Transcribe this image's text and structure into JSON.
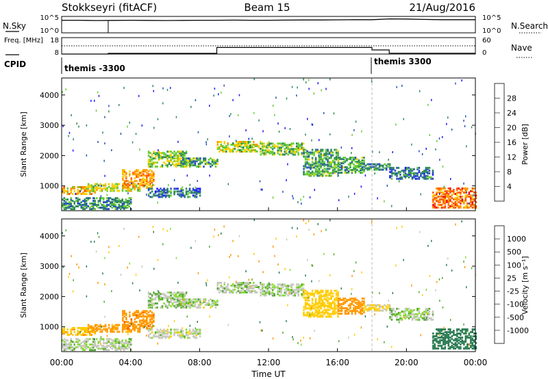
{
  "chart_data": {
    "type": "heatmap",
    "title_left": "Stokkseyri (fitACF)",
    "title_center": "Beam 15",
    "title_right": "21/Aug/2016",
    "time_axis": {
      "label": "Time UT",
      "ticks": [
        "00:00",
        "04:00",
        "08:00",
        "12:00",
        "16:00",
        "20:00",
        "00:00"
      ],
      "range_hours": [
        0,
        24
      ]
    },
    "noise_panel": {
      "left_label": "N.Sky",
      "right_label": "N.Search",
      "left_ticks": [
        "10^5",
        "10^0"
      ],
      "right_ticks": [
        "10^5",
        "10^0"
      ],
      "sky_trace": [
        [
          0,
          4.1
        ],
        [
          1,
          4.1
        ],
        [
          2,
          4.0
        ],
        [
          3,
          4.05
        ],
        [
          4,
          4.1
        ],
        [
          5,
          4.05
        ],
        [
          6,
          4.0
        ],
        [
          7,
          4.05
        ],
        [
          8,
          4.1
        ],
        [
          9,
          4.1
        ],
        [
          10,
          4.15
        ],
        [
          11,
          4.1
        ],
        [
          12,
          4.1
        ],
        [
          13,
          4.15
        ],
        [
          14,
          4.2
        ],
        [
          15,
          4.2
        ],
        [
          16,
          4.25
        ],
        [
          17,
          4.3
        ],
        [
          18,
          4.3
        ],
        [
          19,
          4.6
        ],
        [
          20,
          4.55
        ],
        [
          21,
          4.4
        ],
        [
          22,
          4.3
        ],
        [
          23,
          4.3
        ],
        [
          24,
          4.3
        ]
      ]
    },
    "freq_panel": {
      "left_label": "Freq. [MHz]",
      "right_label": "Nave",
      "left_ticks": [
        "18",
        "8"
      ],
      "right_ticks": [
        "60",
        "0"
      ],
      "freq_trace": [
        [
          0,
          8
        ],
        [
          2.7,
          8
        ],
        [
          2.7,
          8.4
        ],
        [
          9,
          8.4
        ],
        [
          9,
          12
        ],
        [
          18,
          12
        ],
        [
          18,
          10.5
        ],
        [
          19,
          10.5
        ],
        [
          19,
          8.5
        ],
        [
          24,
          8.5
        ]
      ]
    },
    "cpid_panel": {
      "label": "CPID",
      "segments": [
        {
          "start": 0,
          "end": 18,
          "name": "themis -3300"
        },
        {
          "start": 18,
          "end": 24,
          "name": "themis 3300"
        }
      ]
    },
    "power_panel": {
      "ylabel": "Slant Range [km]",
      "yticks": [
        "1000",
        "2000",
        "3000",
        "4000"
      ],
      "ylim": [
        180,
        4560
      ],
      "colorbar_label": "Power [dB]",
      "colorbar_ticks": [
        "4",
        "8",
        "12",
        "16",
        "20",
        "24",
        "28"
      ],
      "colorbar_range": [
        0,
        32
      ],
      "colors": [
        "#1a1aff",
        "#2a52be",
        "#2e8b57",
        "#66cc33",
        "#f5d000",
        "#ff9a00",
        "#ff5a00",
        "#ee1111"
      ]
    },
    "velocity_panel": {
      "ylabel": "Slant Range [km]",
      "yticks": [
        "1000",
        "2000",
        "3000",
        "4000"
      ],
      "ylim": [
        180,
        4560
      ],
      "colorbar_label": "Velocity [m s⁻¹]",
      "colorbar_ticks": [
        "1000",
        "500",
        "100",
        "25",
        "-25",
        "-100",
        "-500",
        "-1000"
      ],
      "colors": [
        "#2233cc",
        "#2e7d55",
        "#55aa33",
        "#88dd33",
        "#c8c8c0",
        "#ffcc00",
        "#ff9900",
        "#ff5500",
        "#ee0000"
      ]
    },
    "echo_regions": [
      {
        "t": [
          0.0,
          2.0
        ],
        "r": [
          700,
          950
        ],
        "p": 20,
        "v": -80
      },
      {
        "t": [
          1.5,
          4.5
        ],
        "r": [
          800,
          1050
        ],
        "p": 16,
        "v": -150
      },
      {
        "t": [
          3.5,
          5.3
        ],
        "r": [
          900,
          1500
        ],
        "p": 22,
        "v": -350
      },
      {
        "t": [
          5.0,
          7.2
        ],
        "r": [
          1600,
          2100
        ],
        "p": 14,
        "v": 15
      },
      {
        "t": [
          7.0,
          9.0
        ],
        "r": [
          1600,
          1900
        ],
        "p": 12,
        "v": 0
      },
      {
        "t": [
          9.0,
          11.5
        ],
        "r": [
          2100,
          2450
        ],
        "p": 16,
        "v": 5
      },
      {
        "t": [
          11.5,
          14.0
        ],
        "r": [
          2000,
          2400
        ],
        "p": 14,
        "v": 8
      },
      {
        "t": [
          14.0,
          16.0
        ],
        "r": [
          1300,
          2200
        ],
        "p": 12,
        "v": -60
      },
      {
        "t": [
          16.0,
          17.5
        ],
        "r": [
          1400,
          1900
        ],
        "p": 12,
        "v": -200
      },
      {
        "t": [
          17.5,
          19.0
        ],
        "r": [
          1500,
          1700
        ],
        "p": 10,
        "v": -40
      },
      {
        "t": [
          19.0,
          21.5
        ],
        "r": [
          1200,
          1600
        ],
        "p": 8,
        "v": 10
      },
      {
        "t": [
          21.5,
          24.0
        ],
        "r": [
          250,
          900
        ],
        "p": 24,
        "v": 200
      },
      {
        "t": [
          0.0,
          4.0
        ],
        "r": [
          200,
          600
        ],
        "p": 10,
        "v": 5
      },
      {
        "t": [
          5.0,
          8.0
        ],
        "r": [
          600,
          900
        ],
        "p": 8,
        "v": 0
      }
    ]
  }
}
